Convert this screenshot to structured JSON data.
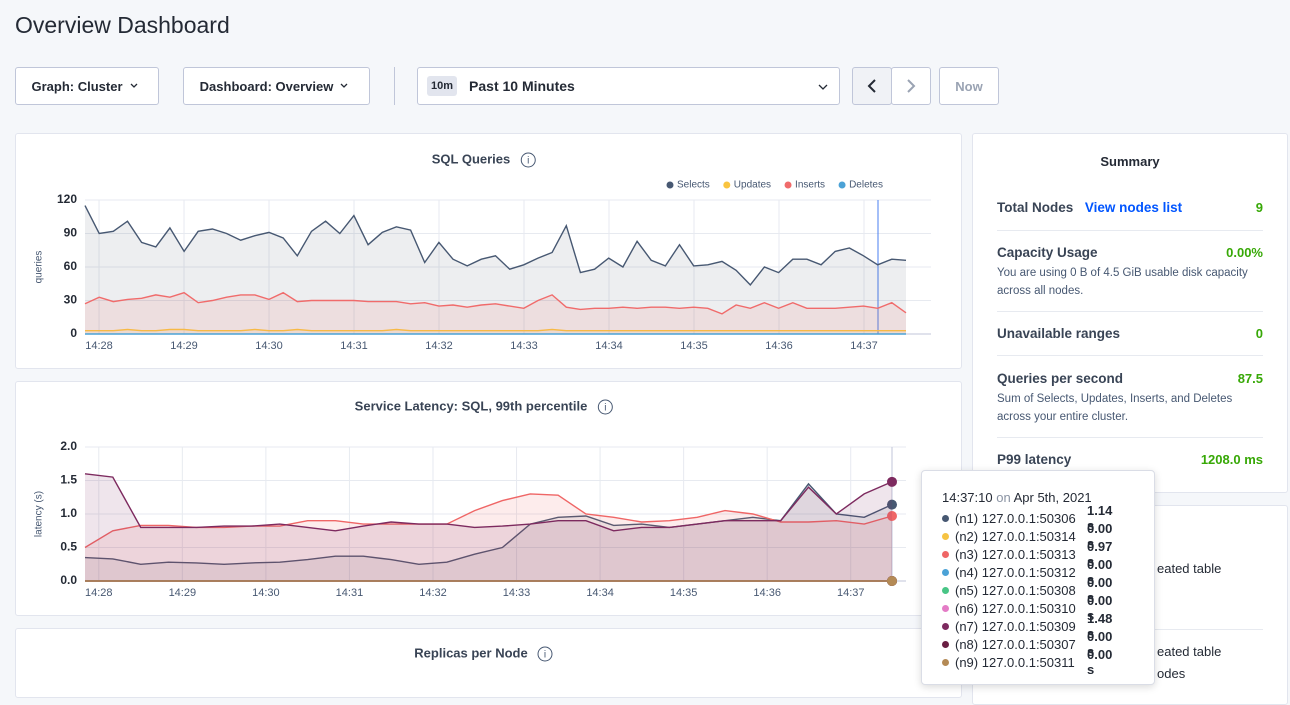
{
  "header": {
    "title": "Overview Dashboard"
  },
  "controls": {
    "graph": "Graph: Cluster",
    "dashboard": "Dashboard: Overview",
    "range_badge": "10m",
    "range": "Past 10 Minutes",
    "now": "Now"
  },
  "charts": [
    {
      "type": "line",
      "title": "SQL Queries",
      "y_label": "queries",
      "xlim": [
        867.835,
        877.494
      ],
      "xticks": [
        {
          "value": 868,
          "label": "14:28"
        },
        {
          "value": 869,
          "label": "14:29"
        },
        {
          "value": 870,
          "label": "14:30"
        },
        {
          "value": 871,
          "label": "14:31"
        },
        {
          "value": 872,
          "label": "14:32"
        },
        {
          "value": 873,
          "label": "14:33"
        },
        {
          "value": 874,
          "label": "14:34"
        },
        {
          "value": 875,
          "label": "14:35"
        },
        {
          "value": 876,
          "label": "14:36"
        },
        {
          "value": 877,
          "label": "14:37"
        }
      ],
      "ylim": [
        0,
        120
      ],
      "yticks": [
        0,
        30,
        60,
        90,
        120
      ],
      "grid": true,
      "legend": "top-right",
      "series": [
        {
          "name": "Selects",
          "color": "#475872",
          "fill": "rgba(80,90,110,0.10)",
          "values": [
            115,
            90,
            92,
            101,
            82,
            78,
            95,
            74,
            92,
            94,
            90,
            84,
            88,
            91,
            86,
            70,
            92,
            101,
            90,
            106,
            80,
            91,
            96,
            93,
            64,
            82,
            67,
            61,
            67,
            70,
            58,
            62,
            68,
            73,
            97,
            55,
            58,
            68,
            60,
            83,
            66,
            61,
            80,
            61,
            62,
            65,
            57,
            44,
            60,
            55,
            67,
            67,
            62,
            74,
            77,
            70,
            62,
            67,
            66
          ]
        },
        {
          "name": "Updates",
          "color": "#f9c440",
          "fill": "rgba(249,196,64,0.10)",
          "values": [
            3,
            3,
            3,
            4,
            3,
            3,
            4,
            4,
            3,
            3,
            3,
            3,
            4,
            3,
            3,
            4,
            3,
            3,
            3,
            3,
            3,
            3,
            4,
            3,
            3,
            3,
            3,
            3,
            3,
            3,
            3,
            3,
            3,
            4,
            3,
            3,
            3,
            3,
            3,
            3,
            3,
            3,
            3,
            3,
            3,
            3,
            3,
            3,
            3,
            3,
            3,
            3,
            3,
            3,
            3,
            3,
            3,
            3,
            3
          ]
        },
        {
          "name": "Inserts",
          "color": "#f06b6b",
          "fill": "rgba(240,107,107,0.12)",
          "values": [
            27,
            33,
            29,
            31,
            32,
            35,
            33,
            37,
            28,
            30,
            33,
            35,
            35,
            31,
            37,
            29,
            30,
            30,
            30,
            30,
            29,
            29,
            29,
            27,
            28,
            25,
            26,
            24,
            26,
            27,
            25,
            23,
            30,
            35,
            24,
            22,
            23,
            23,
            24,
            23,
            24,
            24,
            23,
            24,
            23,
            18,
            26,
            23,
            28,
            23,
            28,
            23,
            23,
            23,
            24,
            25,
            23,
            28,
            19
          ]
        },
        {
          "name": "Deletes",
          "color": "#4ba2d6",
          "fill": "rgba(75,162,214,0.10)",
          "values": [
            0,
            0,
            0,
            0,
            0,
            0,
            0,
            0,
            0,
            0,
            0,
            0,
            0,
            0,
            0,
            0,
            0,
            0,
            0,
            0,
            0,
            0,
            0,
            0,
            0,
            0,
            0,
            0,
            0,
            0,
            0,
            0,
            0,
            0,
            0,
            0,
            0,
            0,
            0,
            0,
            0,
            0,
            0,
            0,
            0,
            0,
            0,
            0,
            0,
            0,
            0,
            0,
            0,
            0,
            0,
            0,
            0,
            0,
            0
          ]
        }
      ]
    },
    {
      "type": "line",
      "title": "Service Latency: SQL, 99th percentile",
      "y_label": "latency (s)",
      "xlim": [
        867.835,
        877.494
      ],
      "xticks": [
        {
          "value": 868,
          "label": "14:28"
        },
        {
          "value": 869,
          "label": "14:29"
        },
        {
          "value": 870,
          "label": "14:30"
        },
        {
          "value": 871,
          "label": "14:31"
        },
        {
          "value": 872,
          "label": "14:32"
        },
        {
          "value": 873,
          "label": "14:33"
        },
        {
          "value": 874,
          "label": "14:34"
        },
        {
          "value": 875,
          "label": "14:35"
        },
        {
          "value": 876,
          "label": "14:36"
        },
        {
          "value": 877,
          "label": "14:37"
        }
      ],
      "ylim": [
        0,
        2
      ],
      "yticks": [
        {
          "value": 0,
          "label": "0.0"
        },
        {
          "value": 0.5,
          "label": "0.5"
        },
        {
          "value": 1,
          "label": "1.0"
        },
        {
          "value": 1.5,
          "label": "1.5"
        },
        {
          "value": 2,
          "label": "2.0"
        }
      ],
      "grid": true,
      "series": [
        {
          "color": "#475872",
          "fill": "rgba(80,90,110,0.10)",
          "values": [
            0.35,
            0.33,
            0.25,
            0.28,
            0.27,
            0.25,
            0.27,
            0.28,
            0.32,
            0.37,
            0.37,
            0.32,
            0.25,
            0.28,
            0.4,
            0.5,
            0.85,
            0.95,
            0.97,
            0.83,
            0.85,
            0.8,
            0.85,
            0.9,
            0.95,
            0.9,
            1.45,
            1.0,
            0.95,
            1.14
          ]
        },
        {
          "color": "#f6c343",
          "fill": "rgba(246,195,67,0.08)",
          "values": [
            0,
            0,
            0,
            0,
            0,
            0,
            0,
            0,
            0,
            0,
            0,
            0,
            0,
            0,
            0,
            0,
            0,
            0,
            0,
            0,
            0,
            0,
            0,
            0,
            0,
            0,
            0,
            0,
            0,
            0
          ]
        },
        {
          "color": "#ef6666",
          "fill": "rgba(239,102,102,0.12)",
          "values": [
            0.5,
            0.75,
            0.83,
            0.83,
            0.8,
            0.8,
            0.82,
            0.82,
            0.9,
            0.9,
            0.85,
            0.85,
            0.85,
            0.85,
            1.05,
            1.2,
            1.3,
            1.28,
            1.0,
            0.95,
            0.88,
            0.9,
            0.95,
            1.05,
            1.0,
            0.88,
            0.88,
            0.9,
            0.85,
            0.97
          ]
        },
        {
          "color": "#4ba2d6",
          "fill": "rgba(75,162,214,0.08)",
          "values": [
            0,
            0,
            0,
            0,
            0,
            0,
            0,
            0,
            0,
            0,
            0,
            0,
            0,
            0,
            0,
            0,
            0,
            0,
            0,
            0,
            0,
            0,
            0,
            0,
            0,
            0,
            0,
            0,
            0,
            0
          ]
        },
        {
          "color": "#48c586",
          "fill": "rgba(72,197,134,0.08)",
          "values": [
            0,
            0,
            0,
            0,
            0,
            0,
            0,
            0,
            0,
            0,
            0,
            0,
            0,
            0,
            0,
            0,
            0,
            0,
            0,
            0,
            0,
            0,
            0,
            0,
            0,
            0,
            0,
            0,
            0,
            0
          ]
        },
        {
          "color": "#e47cc6",
          "fill": "rgba(228,124,198,0.08)",
          "values": [
            0,
            0,
            0,
            0,
            0,
            0,
            0,
            0,
            0,
            0,
            0,
            0,
            0,
            0,
            0,
            0,
            0,
            0,
            0,
            0,
            0,
            0,
            0,
            0,
            0,
            0,
            0,
            0,
            0,
            0
          ]
        },
        {
          "color": "#7d2a5f",
          "fill": "rgba(125,42,95,0.12)",
          "values": [
            1.6,
            1.55,
            0.8,
            0.8,
            0.8,
            0.82,
            0.82,
            0.85,
            0.8,
            0.75,
            0.82,
            0.88,
            0.85,
            0.85,
            0.8,
            0.82,
            0.85,
            0.9,
            0.9,
            0.75,
            0.8,
            0.8,
            0.85,
            0.9,
            0.9,
            0.9,
            1.4,
            1.0,
            1.3,
            1.48
          ]
        },
        {
          "color": "#6a1f43",
          "fill": "rgba(106,31,67,0.08)",
          "values": [
            0,
            0,
            0,
            0,
            0,
            0,
            0,
            0,
            0,
            0,
            0,
            0,
            0,
            0,
            0,
            0,
            0,
            0,
            0,
            0,
            0,
            0,
            0,
            0,
            0,
            0,
            0,
            0,
            0,
            0
          ]
        },
        {
          "color": "#b48a55",
          "fill": "rgba(180,138,85,0.08)",
          "values": [
            0,
            0,
            0,
            0,
            0,
            0,
            0,
            0,
            0,
            0,
            0,
            0,
            0,
            0,
            0,
            0,
            0,
            0,
            0,
            0,
            0,
            0,
            0,
            0,
            0,
            0,
            0,
            0,
            0,
            0
          ]
        }
      ]
    },
    {
      "title": "Replicas per Node"
    }
  ],
  "summary": {
    "title": "Summary",
    "items": [
      {
        "label": "Total Nodes",
        "link": "View nodes list",
        "value": "9"
      },
      {
        "label": "Capacity Usage",
        "value": "0.00%",
        "description": "You are using 0 B of 4.5 GiB usable disk capacity across all nodes."
      },
      {
        "label": "Unavailable ranges",
        "value": "0"
      },
      {
        "label": "Queries per second",
        "value": "87.5",
        "description": "Sum of Selects, Updates, Inserts, and Deletes across your entire cluster."
      },
      {
        "label": "P99 latency",
        "value": "1208.0 ms"
      }
    ]
  },
  "side_panel": {
    "fragments": [
      "eated table",
      "eated table",
      "odes"
    ]
  },
  "tooltip": {
    "time": "14:37:10",
    "connector": "on",
    "date": "Apr 5th, 2021",
    "rows": [
      {
        "name": "(n1) 127.0.0.1:50306",
        "value": "1.14 s"
      },
      {
        "name": "(n2) 127.0.0.1:50314",
        "value": "0.00 s"
      },
      {
        "name": "(n3) 127.0.0.1:50313",
        "value": "0.97 s"
      },
      {
        "name": "(n4) 127.0.0.1:50312",
        "value": "0.00 s"
      },
      {
        "name": "(n5) 127.0.0.1:50308",
        "value": "0.00 s"
      },
      {
        "name": "(n6) 127.0.0.1:50310",
        "value": "0.00 s"
      },
      {
        "name": "(n7) 127.0.0.1:50309",
        "value": "1.48 s"
      },
      {
        "name": "(n8) 127.0.0.1:50307",
        "value": "0.00 s"
      },
      {
        "name": "(n9) 127.0.0.1:50311",
        "value": "0.00 s"
      }
    ]
  }
}
